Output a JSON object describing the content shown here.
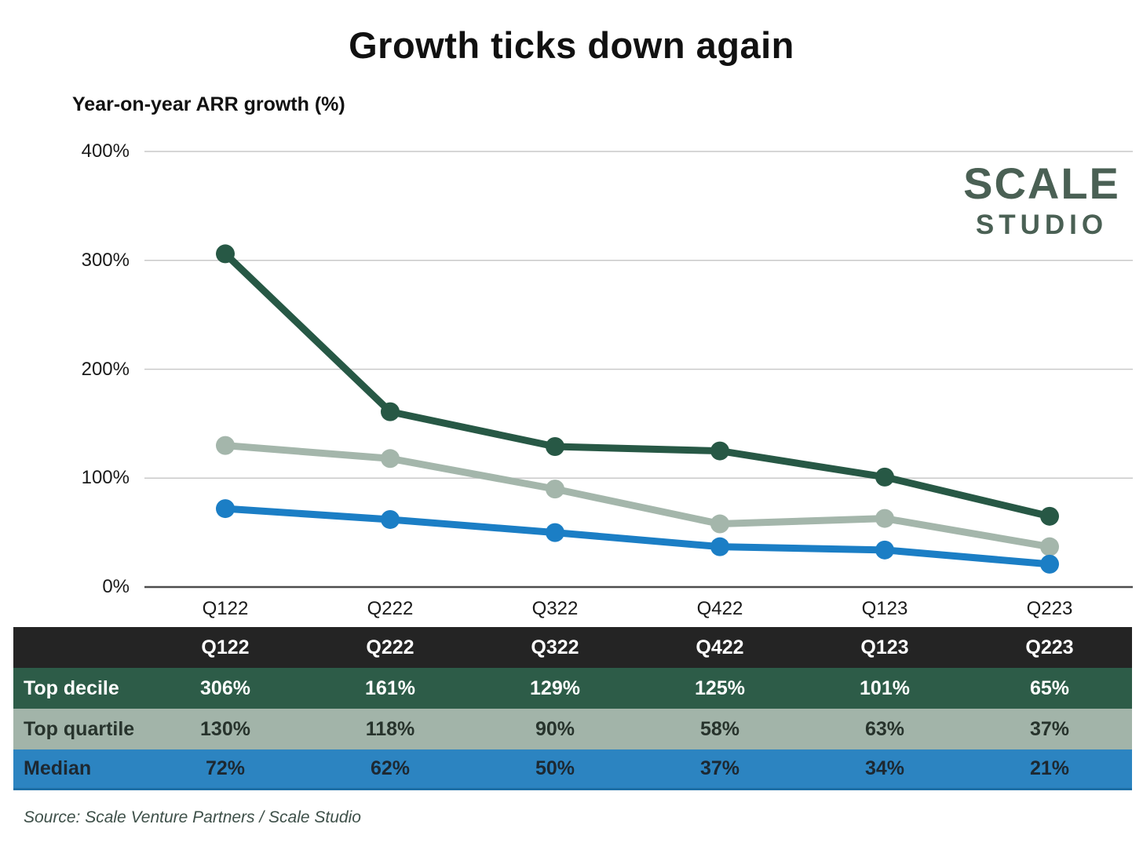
{
  "title": "Growth ticks down again",
  "subtitle": "Year-on-year ARR growth (%)",
  "logo": {
    "line1": "SCALE",
    "line2": "STUDIO",
    "color": "#4a6054"
  },
  "source": "Source: Scale Venture Partners / Scale Studio",
  "chart_data": {
    "type": "line",
    "title": "Growth ticks down again",
    "ylabel": "Year-on-year ARR growth (%)",
    "categories": [
      "Q122",
      "Q222",
      "Q322",
      "Q422",
      "Q123",
      "Q223"
    ],
    "series": [
      {
        "name": "Top decile",
        "values": [
          306,
          161,
          129,
          125,
          101,
          65
        ],
        "color": "#275845"
      },
      {
        "name": "Top quartile",
        "values": [
          130,
          118,
          90,
          58,
          63,
          37
        ],
        "color": "#a4b6ab"
      },
      {
        "name": "Median",
        "values": [
          72,
          62,
          50,
          37,
          34,
          21
        ],
        "color": "#1b7ec5"
      }
    ],
    "yticks": [
      0,
      100,
      200,
      300,
      400
    ],
    "ytick_suffix": "%",
    "ylim": [
      0,
      400
    ],
    "grid": true,
    "grid_color": "#c9c9c9",
    "zero_axis_color": "#4d4d4d",
    "legend_position": "table-below"
  },
  "table": {
    "header_bg": "#242424",
    "header_fg": "#ffffff",
    "headers": [
      "",
      "Q122",
      "Q222",
      "Q322",
      "Q422",
      "Q123",
      "Q223"
    ],
    "rows": [
      {
        "label": "Top decile",
        "values": [
          "306%",
          "161%",
          "129%",
          "125%",
          "101%",
          "65%"
        ],
        "bg": "#2d5c48",
        "fg": "#ffffff"
      },
      {
        "label": "Top quartile",
        "values": [
          "130%",
          "118%",
          "90%",
          "58%",
          "63%",
          "37%"
        ],
        "bg": "#a2b4a9",
        "fg": "#27332c"
      },
      {
        "label": "Median",
        "values": [
          "72%",
          "62%",
          "50%",
          "37%",
          "34%",
          "21%"
        ],
        "bg": "#2c84c1",
        "fg": "#1d2831",
        "border_bottom": "#1d6fa6"
      }
    ]
  }
}
